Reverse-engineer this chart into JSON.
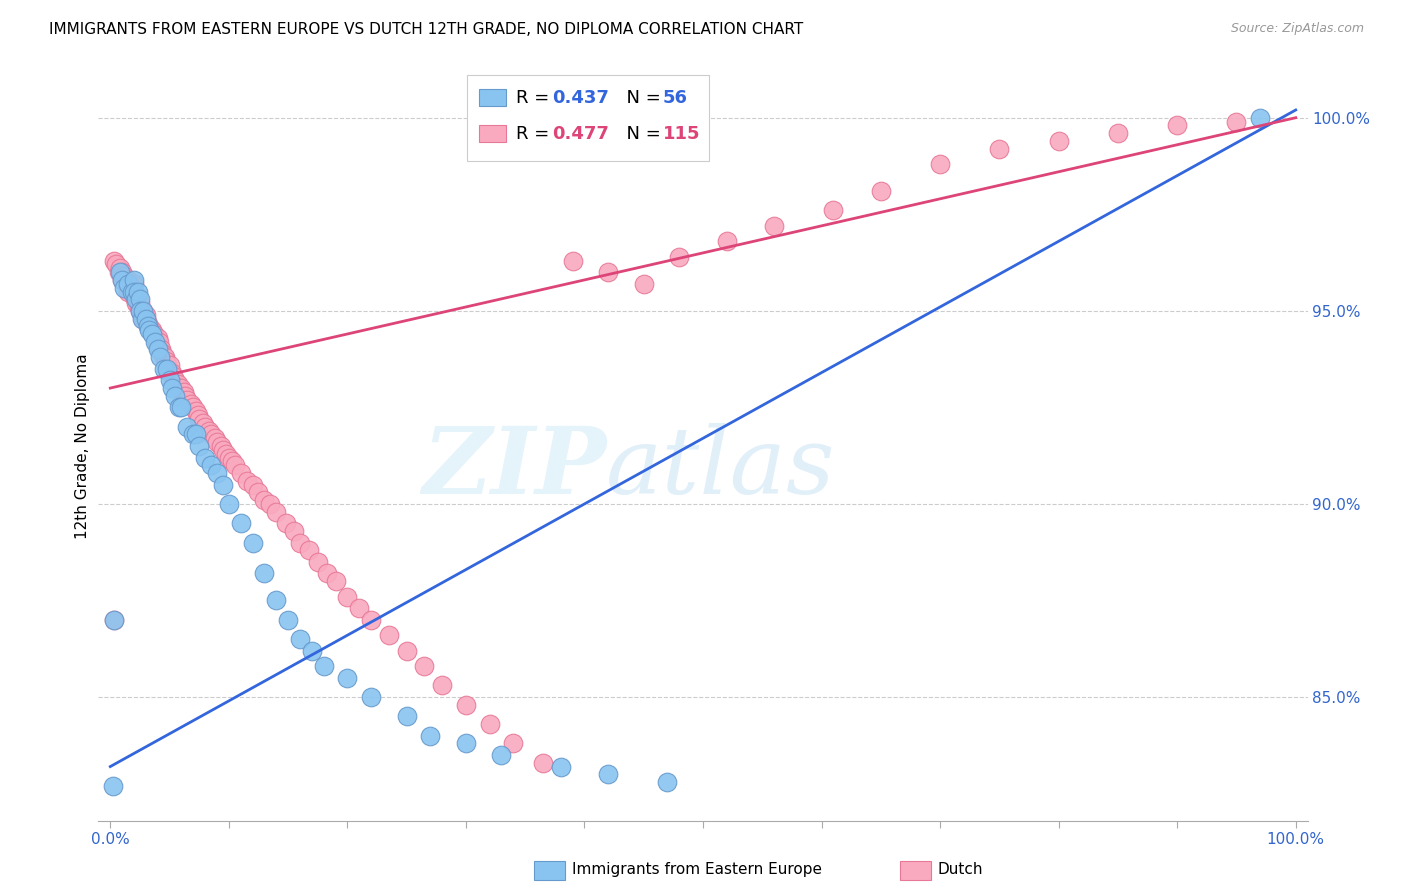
{
  "title": "IMMIGRANTS FROM EASTERN EUROPE VS DUTCH 12TH GRADE, NO DIPLOMA CORRELATION CHART",
  "source": "Source: ZipAtlas.com",
  "ylabel": "12th Grade, No Diploma",
  "blue_color": "#89C4F0",
  "blue_edge": "#6699CC",
  "pink_color": "#F9AABF",
  "pink_edge": "#E87898",
  "blue_line_color": "#3366DD",
  "pink_line_color": "#DD4477",
  "axis_label_color": "#3366CC",
  "R_blue": 0.437,
  "N_blue": 56,
  "R_pink": 0.477,
  "N_pink": 115,
  "blue_line_x0": 0.0,
  "blue_line_y0": 0.832,
  "blue_line_x1": 1.0,
  "blue_line_y1": 1.002,
  "pink_line_x0": 0.0,
  "pink_line_y0": 0.93,
  "pink_line_x1": 1.0,
  "pink_line_y1": 1.0,
  "xlim": [
    -0.01,
    1.01
  ],
  "ylim": [
    0.818,
    1.012
  ],
  "yticks": [
    0.85,
    0.9,
    0.95,
    1.0
  ],
  "yticklabels": [
    "85.0%",
    "90.0%",
    "95.0%",
    "100.0%"
  ],
  "xtick_labels_left": "0.0%",
  "xtick_labels_right": "100.0%",
  "blue_x": [
    0.003,
    0.008,
    0.01,
    0.012,
    0.015,
    0.018,
    0.02,
    0.02,
    0.022,
    0.023,
    0.025,
    0.025,
    0.027,
    0.028,
    0.03,
    0.032,
    0.033,
    0.035,
    0.038,
    0.04,
    0.042,
    0.045,
    0.048,
    0.05,
    0.052,
    0.055,
    0.058,
    0.06,
    0.065,
    0.07,
    0.072,
    0.075,
    0.08,
    0.085,
    0.09,
    0.095,
    0.1,
    0.11,
    0.12,
    0.13,
    0.14,
    0.15,
    0.16,
    0.17,
    0.18,
    0.2,
    0.22,
    0.25,
    0.27,
    0.3,
    0.33,
    0.38,
    0.42,
    0.47,
    0.002,
    0.97
  ],
  "blue_y": [
    0.87,
    0.96,
    0.958,
    0.956,
    0.957,
    0.955,
    0.958,
    0.955,
    0.953,
    0.955,
    0.953,
    0.95,
    0.948,
    0.95,
    0.948,
    0.946,
    0.945,
    0.944,
    0.942,
    0.94,
    0.938,
    0.935,
    0.935,
    0.932,
    0.93,
    0.928,
    0.925,
    0.925,
    0.92,
    0.918,
    0.918,
    0.915,
    0.912,
    0.91,
    0.908,
    0.905,
    0.9,
    0.895,
    0.89,
    0.882,
    0.875,
    0.87,
    0.865,
    0.862,
    0.858,
    0.855,
    0.85,
    0.845,
    0.84,
    0.838,
    0.835,
    0.832,
    0.83,
    0.828,
    0.827,
    1.0
  ],
  "pink_x": [
    0.003,
    0.005,
    0.007,
    0.008,
    0.01,
    0.01,
    0.012,
    0.013,
    0.015,
    0.015,
    0.017,
    0.018,
    0.019,
    0.02,
    0.02,
    0.021,
    0.022,
    0.022,
    0.023,
    0.024,
    0.025,
    0.025,
    0.026,
    0.027,
    0.028,
    0.028,
    0.03,
    0.03,
    0.031,
    0.032,
    0.033,
    0.034,
    0.035,
    0.036,
    0.037,
    0.038,
    0.039,
    0.04,
    0.04,
    0.041,
    0.042,
    0.043,
    0.044,
    0.045,
    0.046,
    0.047,
    0.048,
    0.05,
    0.05,
    0.052,
    0.053,
    0.055,
    0.057,
    0.058,
    0.06,
    0.062,
    0.063,
    0.065,
    0.068,
    0.07,
    0.072,
    0.074,
    0.075,
    0.078,
    0.08,
    0.083,
    0.085,
    0.088,
    0.09,
    0.093,
    0.095,
    0.098,
    0.1,
    0.103,
    0.105,
    0.11,
    0.115,
    0.12,
    0.125,
    0.13,
    0.135,
    0.14,
    0.148,
    0.155,
    0.16,
    0.168,
    0.175,
    0.183,
    0.19,
    0.2,
    0.21,
    0.22,
    0.235,
    0.25,
    0.265,
    0.28,
    0.3,
    0.32,
    0.34,
    0.365,
    0.39,
    0.42,
    0.45,
    0.48,
    0.52,
    0.56,
    0.61,
    0.65,
    0.7,
    0.003,
    0.75,
    0.8,
    0.85,
    0.9,
    0.95
  ],
  "pink_y": [
    0.963,
    0.962,
    0.96,
    0.961,
    0.96,
    0.958,
    0.959,
    0.958,
    0.958,
    0.955,
    0.957,
    0.955,
    0.956,
    0.957,
    0.955,
    0.953,
    0.954,
    0.952,
    0.953,
    0.951,
    0.952,
    0.95,
    0.95,
    0.949,
    0.95,
    0.948,
    0.949,
    0.948,
    0.947,
    0.946,
    0.946,
    0.945,
    0.945,
    0.944,
    0.944,
    0.943,
    0.942,
    0.943,
    0.941,
    0.942,
    0.94,
    0.94,
    0.939,
    0.938,
    0.938,
    0.937,
    0.936,
    0.936,
    0.934,
    0.934,
    0.933,
    0.932,
    0.931,
    0.93,
    0.93,
    0.929,
    0.928,
    0.927,
    0.926,
    0.925,
    0.924,
    0.923,
    0.922,
    0.921,
    0.92,
    0.919,
    0.918,
    0.917,
    0.916,
    0.915,
    0.914,
    0.913,
    0.912,
    0.911,
    0.91,
    0.908,
    0.906,
    0.905,
    0.903,
    0.901,
    0.9,
    0.898,
    0.895,
    0.893,
    0.89,
    0.888,
    0.885,
    0.882,
    0.88,
    0.876,
    0.873,
    0.87,
    0.866,
    0.862,
    0.858,
    0.853,
    0.848,
    0.843,
    0.838,
    0.833,
    0.963,
    0.96,
    0.957,
    0.964,
    0.968,
    0.972,
    0.976,
    0.981,
    0.988,
    0.87,
    0.992,
    0.994,
    0.996,
    0.998,
    0.999
  ]
}
